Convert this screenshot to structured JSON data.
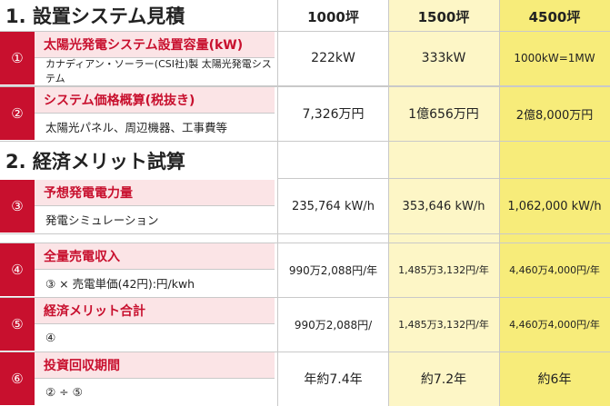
{
  "section1_title": "1. 設置システム見積",
  "section2_title": "2. 経済メリット試算",
  "columns": [
    "1000坪",
    "1500坪",
    "4500坪"
  ],
  "rows": [
    {
      "num": "①",
      "label": "太陽光発電システム設置容量(kW)",
      "sub": "カナディアン・ソーラー(CSI社)製 太陽光発電システム",
      "values": [
        "222kW",
        "333kW",
        "1000kW=1MW"
      ]
    },
    {
      "num": "②",
      "label": "システム価格概算(税抜き)",
      "sub": "太陽光パネル、周辺機器、工事費等",
      "values": [
        "7,326万円",
        "1億656万円",
        "2億8,000万円"
      ]
    },
    {
      "num": "③",
      "label": "予想発電電力量",
      "sub": "発電シミュレーション",
      "values": [
        "235,764 kW/h",
        "353,646 kW/h",
        "1,062,000 kW/h"
      ]
    },
    {
      "num": "④",
      "label": "全量売電収入",
      "sub": "③ × 売電単価(42円):円/kwh",
      "values": [
        "990万2,088円/年",
        "1,485万3,132円/年",
        "4,460万4,000円/年"
      ]
    },
    {
      "num": "⑤",
      "label": "経済メリット合計",
      "sub": "④",
      "values": [
        "990万2,088円/",
        "1,485万3,132円/年",
        "4,460万4,000円/年"
      ]
    },
    {
      "num": "⑥",
      "label": "投資回収期間",
      "sub": "② ÷ ⑤",
      "values": [
        "年約7.4年",
        "約7.2年",
        "約6年"
      ]
    }
  ]
}
